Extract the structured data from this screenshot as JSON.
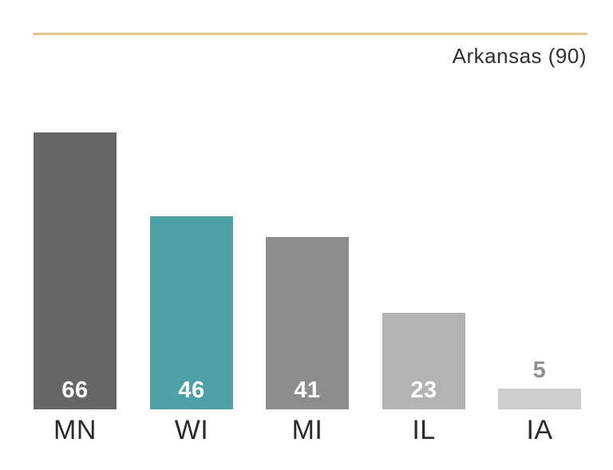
{
  "header": {
    "rule_color": "#eac28e"
  },
  "chart_data": {
    "type": "bar",
    "title": "Arkansas (90)",
    "title_color": "#303032",
    "categories": [
      "MN",
      "WI",
      "MI",
      "IL",
      "IA"
    ],
    "values": [
      66,
      46,
      41,
      23,
      5
    ],
    "bar_colors": [
      "#666668",
      "#4da0a3",
      "#8d8d8f",
      "#b3b3b5",
      "#cdcdcf"
    ],
    "value_labels": [
      "66",
      "46",
      "41",
      "23",
      "5"
    ],
    "value_label_colors": [
      "#ffffff",
      "#ffffff",
      "#ffffff",
      "#ffffff",
      "#8f8f91"
    ],
    "value_label_placement": [
      "inside",
      "inside",
      "inside",
      "inside",
      "above"
    ],
    "category_label_color": "#2b2b2d",
    "xlabel": "",
    "ylabel": "",
    "ylim": [
      0,
      66
    ],
    "axes_visible": false,
    "gridlines": false,
    "legend": false,
    "accent_color": "#4da0a3"
  }
}
